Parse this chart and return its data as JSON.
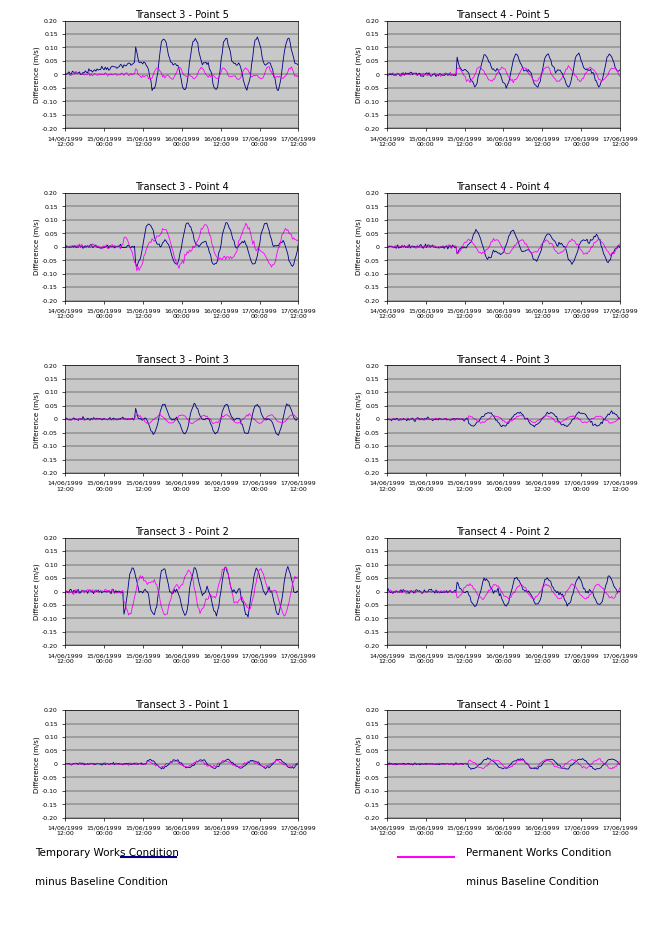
{
  "titles_left": [
    "Transect 3 - Point 5",
    "Transect 3 - Point 4",
    "Transect 3 - Point 3",
    "Transect 3 - Point 2",
    "Transect 3 - Point 1"
  ],
  "titles_right": [
    "Transect 4 - Point 5",
    "Transect 4 - Point 4",
    "Transect 4 - Point 3",
    "Transect 4 - Point 2",
    "Transect 4 - Point 1"
  ],
  "ylabel": "Difference (m/s)",
  "ylim": [
    -0.2,
    0.2
  ],
  "yticks": [
    -0.2,
    -0.15,
    -0.1,
    -0.05,
    0.0,
    0.05,
    0.1,
    0.15,
    0.2
  ],
  "xtick_labels": [
    "14/06/1999\n12:00",
    "15/06/1999\n00:00",
    "15/06/1999\n12:00",
    "16/06/1999\n00:00",
    "16/06/1999\n12:00",
    "17/06/1999\n00:00",
    "17/06/1999\n12:00"
  ],
  "n_xticks": 7,
  "blue_color": "#00008B",
  "magenta_color": "#FF00FF",
  "legend_blue_label1": "Temporary Works Condition",
  "legend_blue_label2": "minus Baseline Condition",
  "legend_magenta_label1": "Permanent Works Condition",
  "legend_magenta_label2": "minus Baseline Condition",
  "background_color": "#C8C8C8",
  "title_fontsize": 7,
  "tick_fontsize": 4.5,
  "ylabel_fontsize": 5,
  "legend_fontsize": 7.5
}
